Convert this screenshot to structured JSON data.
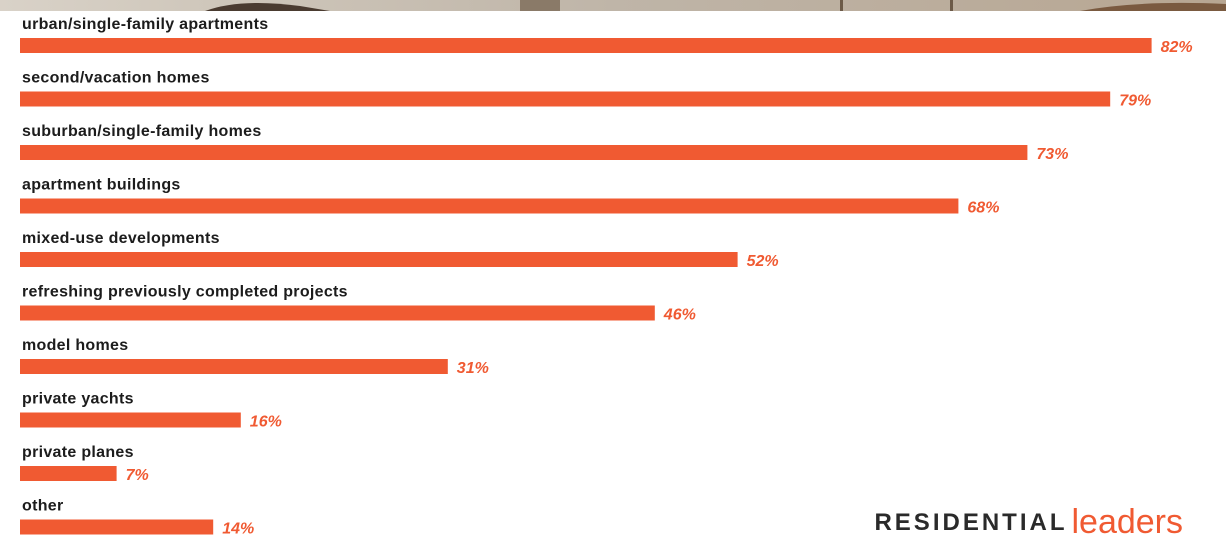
{
  "chart_data": {
    "type": "bar",
    "orientation": "horizontal",
    "categories": [
      "urban/single-family apartments",
      "second/vacation homes",
      "suburban/single-family homes",
      "apartment buildings",
      "mixed-use developments",
      "refreshing previously completed projects",
      "model homes",
      "private yachts",
      "private planes",
      "other"
    ],
    "values": [
      82,
      79,
      73,
      68,
      52,
      46,
      31,
      16,
      7,
      14
    ],
    "value_labels": [
      "82%",
      "79%",
      "73%",
      "68%",
      "52%",
      "46%",
      "31%",
      "16%",
      "7%",
      "14%"
    ],
    "color": "#f05a32",
    "brand": {
      "main": "RESIDENTIAL",
      "accent": "leaders"
    }
  }
}
